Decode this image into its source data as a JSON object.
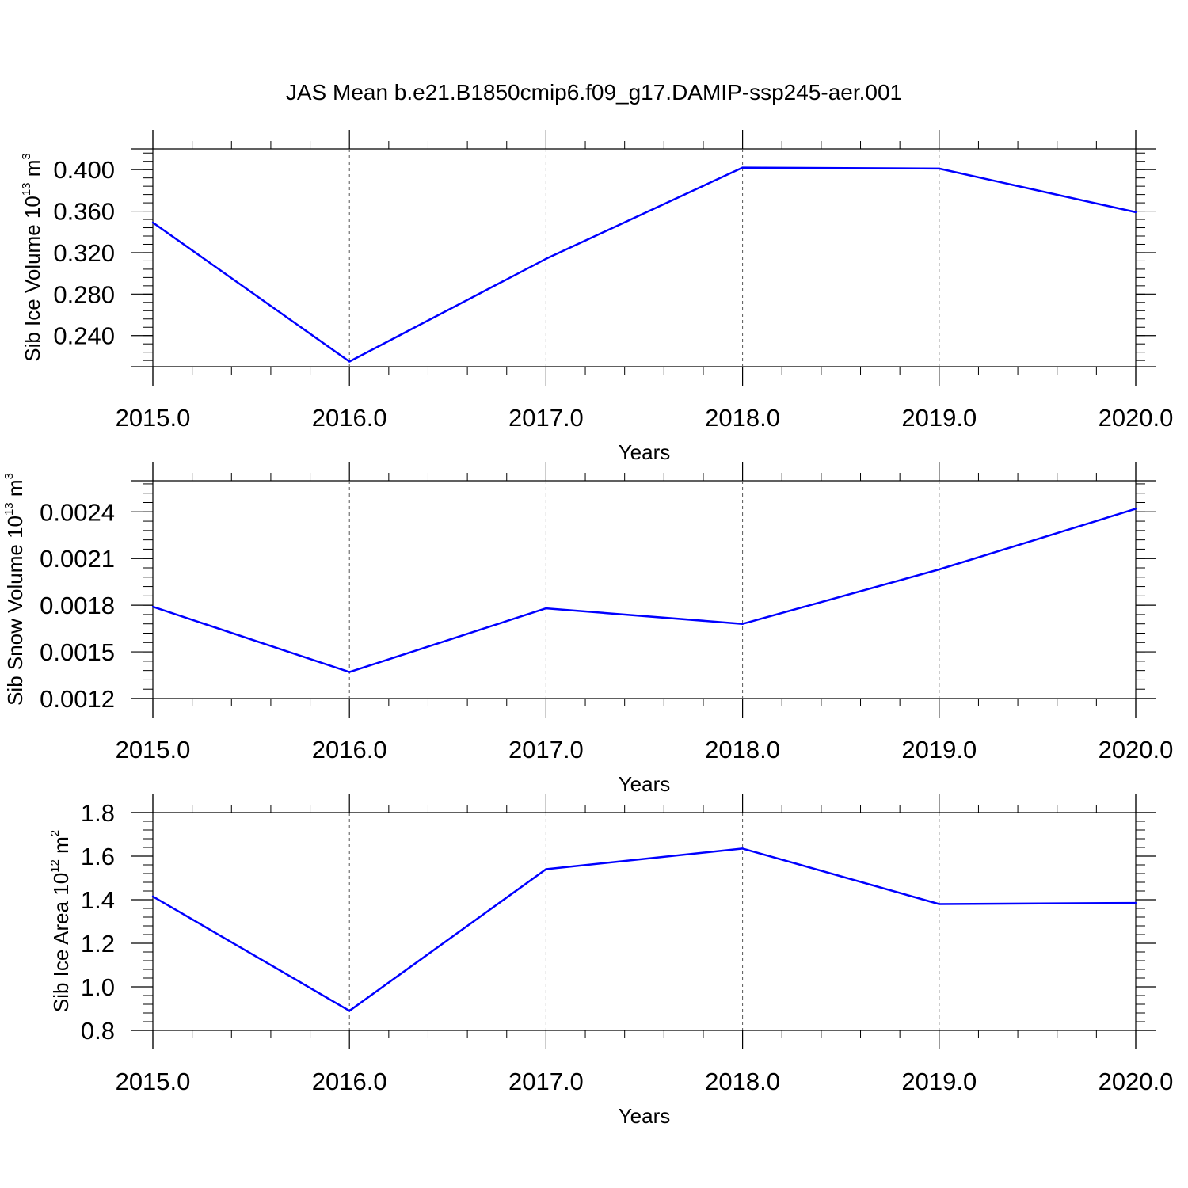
{
  "title": "JAS Mean b.e21.B1850cmip6.f09_g17.DAMIP-ssp245-aer.001",
  "line_color": "#0000ff",
  "chart_data": [
    {
      "type": "line",
      "x": [
        2015,
        2016,
        2017,
        2018,
        2019,
        2020
      ],
      "values": [
        0.349,
        0.215,
        0.314,
        0.402,
        0.401,
        0.359
      ],
      "xlabel": "Years",
      "ylabel": {
        "main": "Sib Ice Volume 10",
        "exp": "13",
        "unit": " m",
        "unit_exp": "3"
      },
      "xlim": [
        2015,
        2020
      ],
      "ylim": [
        0.21,
        0.42
      ],
      "xticks": [
        2015,
        2016,
        2017,
        2018,
        2019,
        2020
      ],
      "xtick_labels": [
        "2015.0",
        "2016.0",
        "2017.0",
        "2018.0",
        "2019.0",
        "2020.0"
      ],
      "yticks": [
        0.24,
        0.28,
        0.32,
        0.36,
        0.4
      ],
      "ytick_labels": [
        "0.240",
        "0.280",
        "0.320",
        "0.360",
        "0.400"
      ],
      "yminor_step": 0.008,
      "grid": "vertical dashed at major x ticks"
    },
    {
      "type": "line",
      "x": [
        2015,
        2016,
        2017,
        2018,
        2019,
        2020
      ],
      "values": [
        0.00179,
        0.00137,
        0.00178,
        0.00168,
        0.00203,
        0.00242
      ],
      "xlabel": "Years",
      "ylabel": {
        "main": "Sib Snow Volume 10",
        "exp": "13",
        "unit": " m",
        "unit_exp": "3"
      },
      "xlim": [
        2015,
        2020
      ],
      "ylim": [
        0.0012,
        0.0026
      ],
      "xticks": [
        2015,
        2016,
        2017,
        2018,
        2019,
        2020
      ],
      "xtick_labels": [
        "2015.0",
        "2016.0",
        "2017.0",
        "2018.0",
        "2019.0",
        "2020.0"
      ],
      "yticks": [
        0.0012,
        0.0015,
        0.0018,
        0.0021,
        0.0024
      ],
      "ytick_labels": [
        "0.0012",
        "0.0015",
        "0.0018",
        "0.0021",
        "0.0024"
      ],
      "yminor_step": 6e-05,
      "grid": "vertical dashed at major x ticks"
    },
    {
      "type": "line",
      "x": [
        2015,
        2016,
        2017,
        2018,
        2019,
        2020
      ],
      "values": [
        1.415,
        0.89,
        1.54,
        1.635,
        1.38,
        1.385
      ],
      "xlabel": "Years",
      "ylabel": {
        "main": "Sib Ice Area 10",
        "exp": "12",
        "unit": " m",
        "unit_exp": "2"
      },
      "xlim": [
        2015,
        2020
      ],
      "ylim": [
        0.8,
        1.8
      ],
      "xticks": [
        2015,
        2016,
        2017,
        2018,
        2019,
        2020
      ],
      "xtick_labels": [
        "2015.0",
        "2016.0",
        "2017.0",
        "2018.0",
        "2019.0",
        "2020.0"
      ],
      "yticks": [
        0.8,
        1.0,
        1.2,
        1.4,
        1.6,
        1.8
      ],
      "ytick_labels": [
        "0.8",
        "1.0",
        "1.2",
        "1.4",
        "1.6",
        "1.8"
      ],
      "yminor_step": 0.04,
      "grid": "vertical dashed at major x ticks"
    }
  ]
}
